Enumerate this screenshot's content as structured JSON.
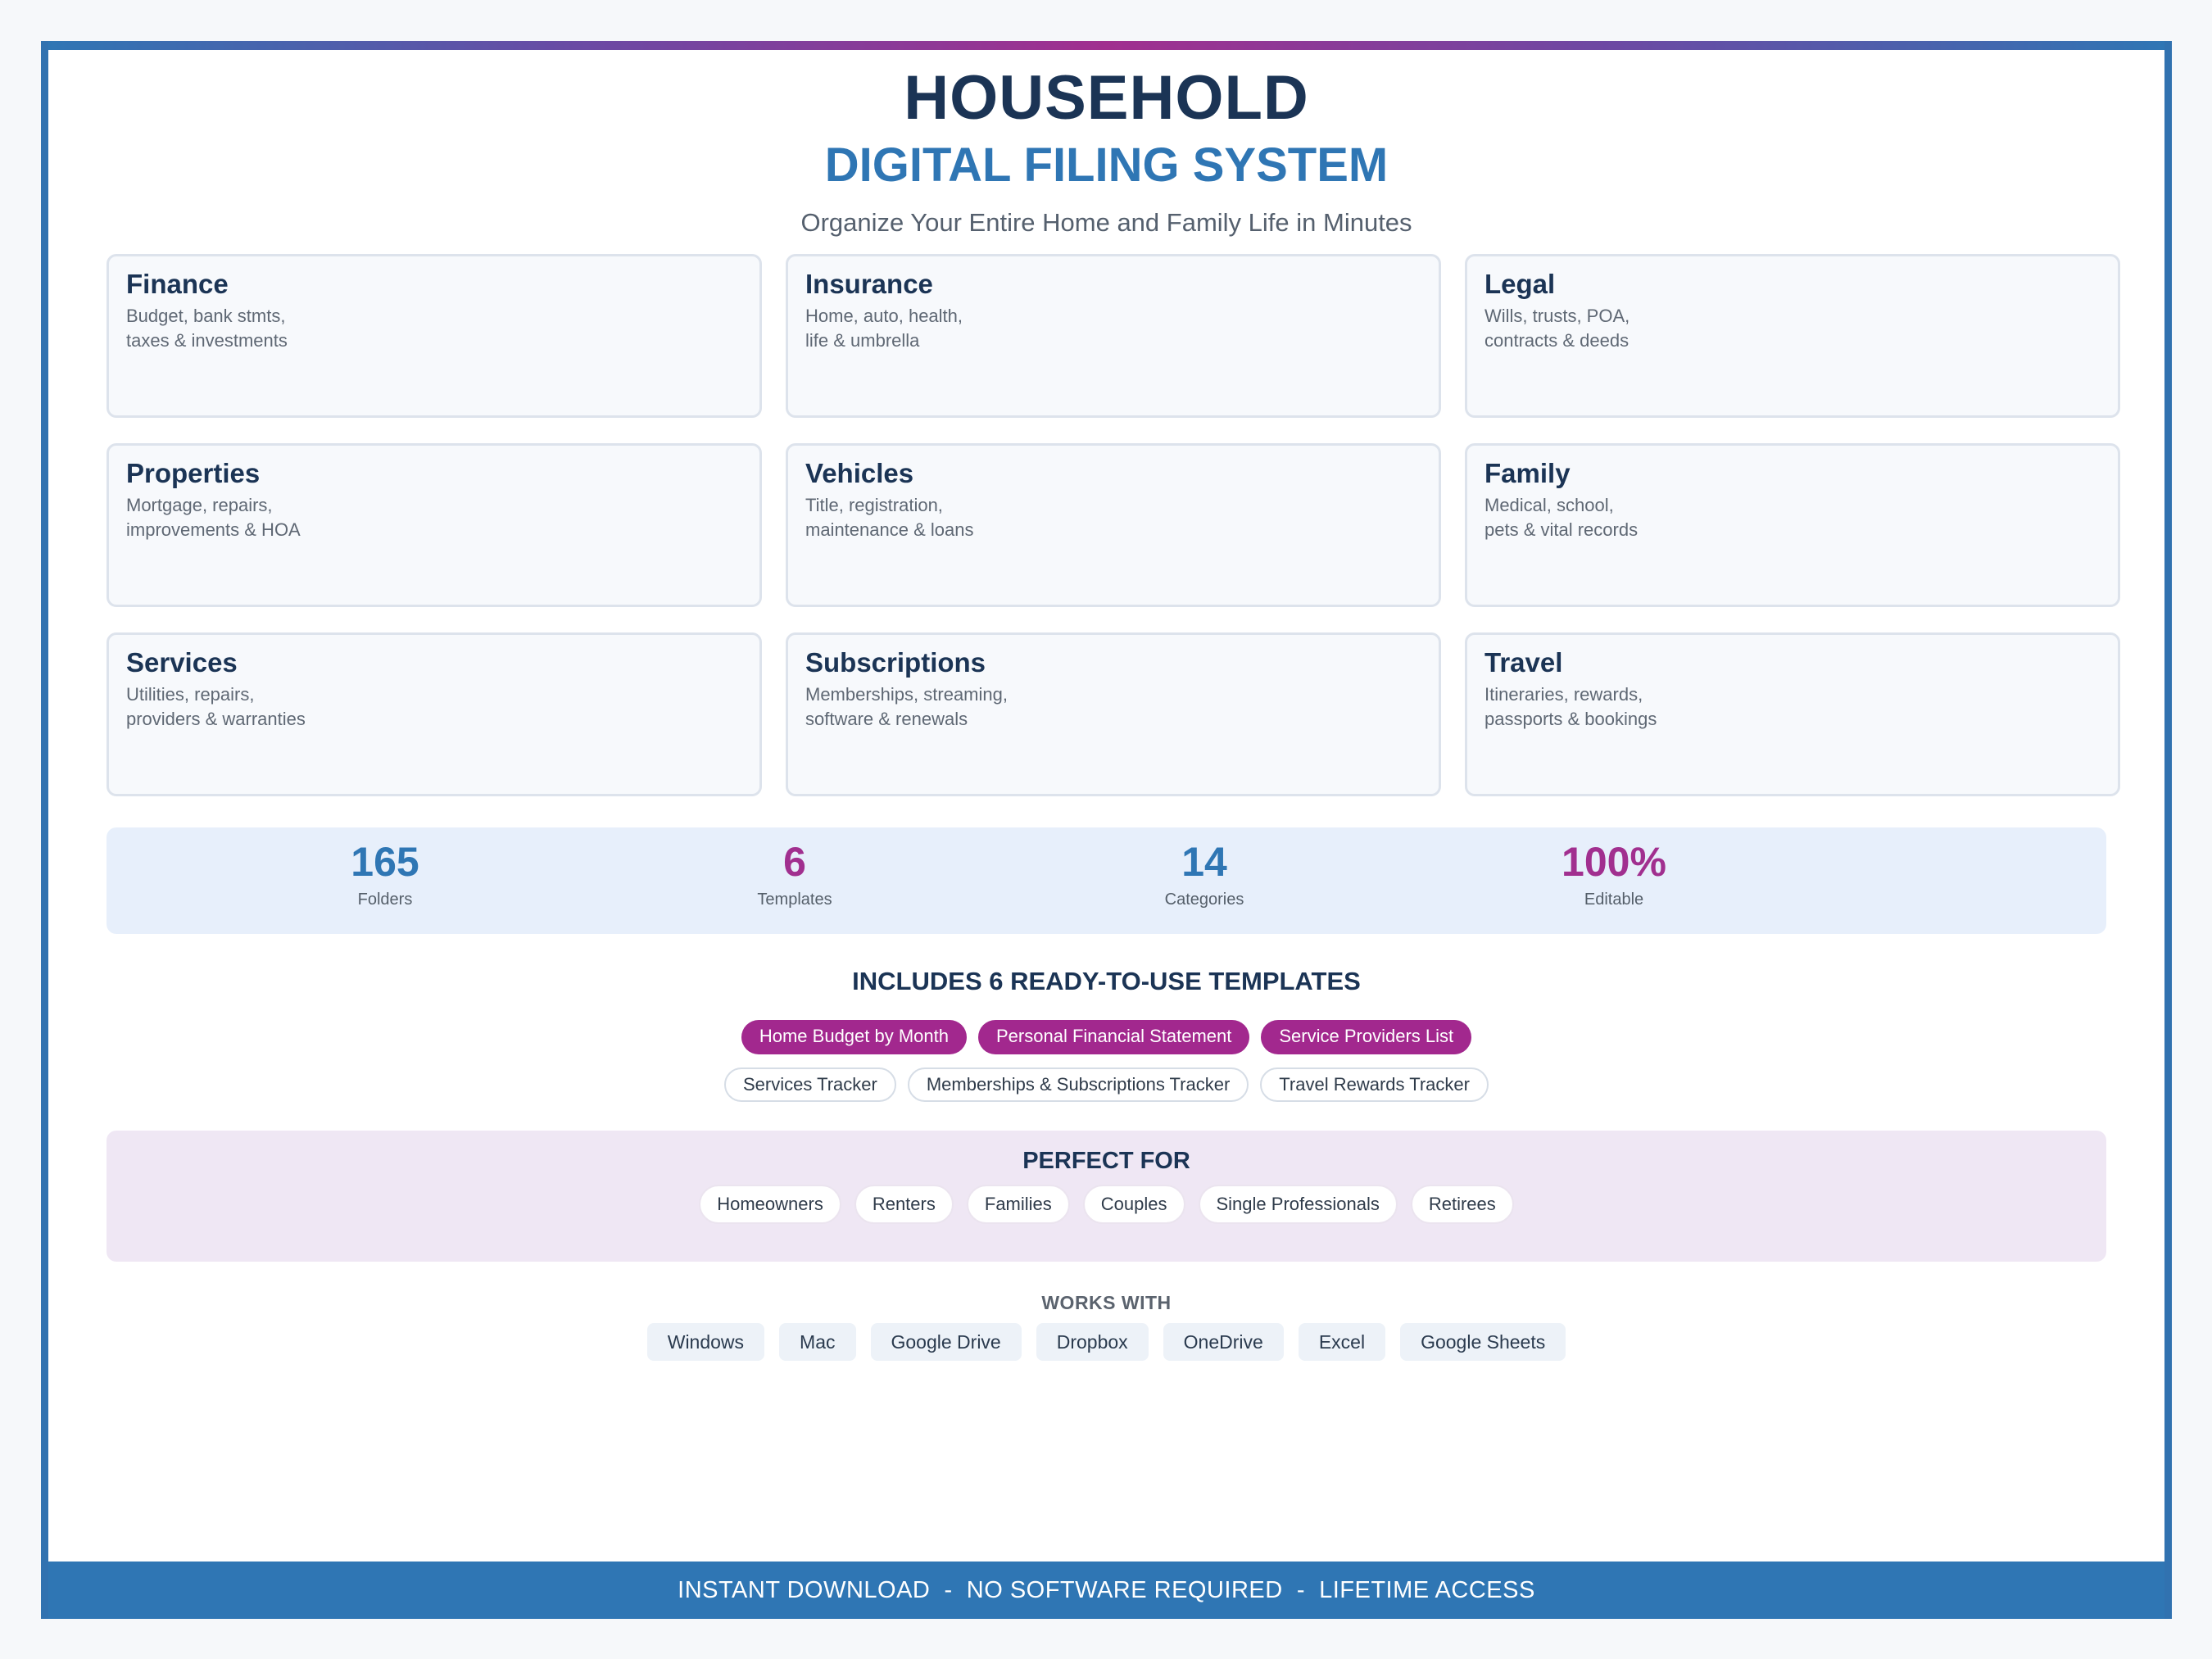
{
  "header": {
    "title": "HOUSEHOLD",
    "subtitle": "DIGITAL FILING SYSTEM",
    "tagline": "Organize Your Entire Home and Family Life in Minutes"
  },
  "categories": [
    {
      "name": "Finance",
      "desc": "Budget, bank stmts,\ntaxes & investments"
    },
    {
      "name": "Insurance",
      "desc": "Home, auto, health,\nlife & umbrella"
    },
    {
      "name": "Legal",
      "desc": "Wills, trusts, POA,\ncontracts & deeds"
    },
    {
      "name": "Properties",
      "desc": "Mortgage, repairs,\nimprovements & HOA"
    },
    {
      "name": "Vehicles",
      "desc": "Title, registration,\nmaintenance & loans"
    },
    {
      "name": "Family",
      "desc": "Medical, school,\npets & vital records"
    },
    {
      "name": "Services",
      "desc": "Utilities, repairs,\nproviders & warranties"
    },
    {
      "name": "Subscriptions",
      "desc": "Memberships, streaming,\nsoftware & renewals"
    },
    {
      "name": "Travel",
      "desc": "Itineraries, rewards,\npassports & bookings"
    }
  ],
  "stats": [
    {
      "value": "165",
      "label": "Folders",
      "color": "#2f76b4"
    },
    {
      "value": "6",
      "label": "Templates",
      "color": "#a12f8f"
    },
    {
      "value": "14",
      "label": "Categories",
      "color": "#2f76b4"
    },
    {
      "value": "100%",
      "label": "Editable",
      "color": "#a12f8f"
    }
  ],
  "templates": {
    "title": "INCLUDES 6 READY-TO-USE TEMPLATES",
    "highlighted": [
      "Home Budget by Month",
      "Personal Financial Statement",
      "Service Providers List"
    ],
    "others": [
      "Services Tracker",
      "Memberships & Subscriptions Tracker",
      "Travel Rewards Tracker"
    ]
  },
  "perfect_for": {
    "title": "PERFECT FOR",
    "items": [
      "Homeowners",
      "Renters",
      "Families",
      "Couples",
      "Single Professionals",
      "Retirees"
    ]
  },
  "works_with": {
    "title": "WORKS WITH",
    "items": [
      "Windows",
      "Mac",
      "Google Drive",
      "Dropbox",
      "OneDrive",
      "Excel",
      "Google Sheets"
    ]
  },
  "footer": {
    "text": "INSTANT DOWNLOAD  -  NO SOFTWARE REQUIRED  -  LIFETIME ACCESS"
  },
  "colors": {
    "primary_blue": "#2f76b4",
    "accent_purple": "#a12f8f",
    "navy": "#1b3455"
  }
}
